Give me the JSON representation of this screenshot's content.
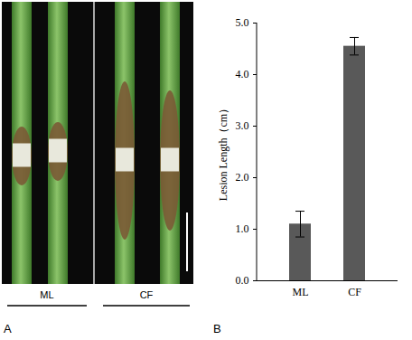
{
  "chart_data": {
    "type": "bar",
    "categories": [
      "ML",
      "CF"
    ],
    "values": [
      1.1,
      4.55
    ],
    "errors": [
      0.25,
      0.17
    ],
    "color": "#595959",
    "ylabel": "Lesion Length（cm）",
    "ylim": [
      0,
      5
    ],
    "yticks": [
      0,
      1,
      2,
      3,
      4,
      5
    ],
    "grid": false
  },
  "figure": {
    "panel_labels": [
      "A",
      "B"
    ],
    "photo_groups": [
      "ML",
      "CF"
    ]
  }
}
